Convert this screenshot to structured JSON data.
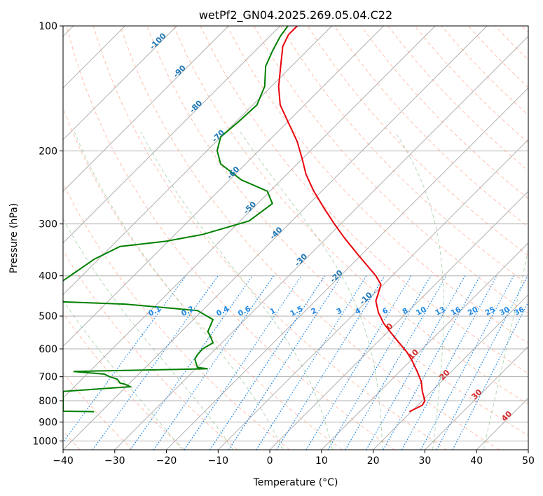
{
  "chart_data": {
    "type": "skew-t",
    "title": "wetPf2_GN04.2025.269.05.04.C22",
    "xlabel": "Temperature (°C)",
    "ylabel": "Pressure (hPa)",
    "xlim": [
      -40,
      50
    ],
    "ylim": [
      1050,
      100
    ],
    "y_scale": "log",
    "grid": true,
    "x_ticks": [
      -40,
      -30,
      -20,
      -10,
      0,
      10,
      20,
      30,
      40,
      50
    ],
    "y_ticks": [
      100,
      200,
      300,
      400,
      500,
      600,
      700,
      800,
      900,
      1000
    ],
    "x_tick_labels": [
      "−40",
      "−30",
      "−20",
      "−10",
      "0",
      "10",
      "20",
      "30",
      "40",
      "50"
    ],
    "y_tick_labels": [
      "100",
      "200",
      "300",
      "400",
      "500",
      "600",
      "700",
      "800",
      "900",
      "1000"
    ],
    "series": [
      {
        "role": "temperature",
        "color": "#e8000b",
        "points": [
          [
            27,
            850
          ],
          [
            29.5,
            820
          ],
          [
            30,
            800
          ],
          [
            29.5,
            760
          ],
          [
            29.3,
            720
          ],
          [
            28.5,
            680
          ],
          [
            27.5,
            640
          ],
          [
            26.5,
            610
          ],
          [
            25,
            580
          ],
          [
            23.5,
            550
          ],
          [
            22,
            520
          ],
          [
            21,
            490
          ],
          [
            20.5,
            460
          ],
          [
            21,
            440
          ],
          [
            21.5,
            420
          ],
          [
            20.5,
            400
          ],
          [
            19,
            380
          ],
          [
            17,
            355
          ],
          [
            14.5,
            325
          ],
          [
            12.5,
            300
          ],
          [
            10.5,
            275
          ],
          [
            8.5,
            250
          ],
          [
            7,
            228
          ],
          [
            6.3,
            210
          ],
          [
            5.3,
            190
          ],
          [
            3.5,
            170
          ],
          [
            2,
            155
          ],
          [
            1.7,
            140
          ],
          [
            2.1,
            125
          ],
          [
            2.5,
            112
          ],
          [
            3.6,
            105
          ],
          [
            5.3,
            100
          ]
        ]
      },
      {
        "role": "dewpoint",
        "color": "#008000",
        "points": [
          [
            -34,
            850
          ],
          [
            -40,
            848
          ],
          [
            -40,
            760
          ],
          [
            -27,
            740
          ],
          [
            -28,
            730
          ],
          [
            -29,
            725
          ],
          [
            -29.5,
            710
          ],
          [
            -31,
            700
          ],
          [
            -32,
            690
          ],
          [
            -38,
            680
          ],
          [
            -12,
            670
          ],
          [
            -14,
            665
          ],
          [
            -14.5,
            635
          ],
          [
            -14,
            620
          ],
          [
            -13,
            600
          ],
          [
            -11,
            580
          ],
          [
            -11.5,
            560
          ],
          [
            -12,
            545
          ],
          [
            -11,
            510
          ],
          [
            -14,
            485
          ],
          [
            -28,
            468
          ],
          [
            -40.5,
            462
          ],
          [
            -41.5,
            440
          ],
          [
            -40.5,
            415
          ],
          [
            -38,
            395
          ],
          [
            -34,
            365
          ],
          [
            -29,
            340
          ],
          [
            -20,
            330
          ],
          [
            -13,
            318
          ],
          [
            -4,
            295
          ],
          [
            0.5,
            268
          ],
          [
            -0.5,
            250
          ],
          [
            -5.5,
            235
          ],
          [
            -9.5,
            215
          ],
          [
            -10.2,
            200
          ],
          [
            -9.5,
            185
          ],
          [
            -6,
            170
          ],
          [
            -2.5,
            155
          ],
          [
            -1,
            140
          ],
          [
            -0.8,
            125
          ],
          [
            0.5,
            115
          ],
          [
            2,
            106
          ],
          [
            3.5,
            100
          ]
        ]
      }
    ],
    "mixing_ratio_labels": [
      "0.1",
      "0.2",
      "0.4",
      "0.6",
      "1",
      "1.5",
      "2",
      "3",
      "4",
      "6",
      "8",
      "10",
      "13",
      "16",
      "20",
      "25",
      "30",
      "36"
    ],
    "mixing_ratio_values": [
      0.1,
      0.2,
      0.4,
      0.6,
      1,
      1.5,
      2,
      3,
      4,
      6,
      8,
      10,
      13,
      16,
      20,
      25,
      30,
      36
    ],
    "mixing_ratio_label_pressure": 500,
    "isotherm_labels": {
      "blue": [
        "-100",
        "-90",
        "-80",
        "-70",
        "-60",
        "-50",
        "-40",
        "-30",
        "-20",
        "-10"
      ],
      "red": [
        "0",
        "10",
        "20",
        "30",
        "40"
      ]
    },
    "colors": {
      "temperature": "#e8000b",
      "dewpoint": "#008000",
      "grid": "#b0b0b0",
      "dry_adiabat": "#ff8c69",
      "moist_adiabat": "#6ab46a",
      "mixing_ratio": "#1e88e5",
      "label_blue": "#1f77b4",
      "label_red": "#d62728",
      "label_mixing": "#1e88e5",
      "dry_adiabat_brown": "#c9a88a"
    }
  }
}
